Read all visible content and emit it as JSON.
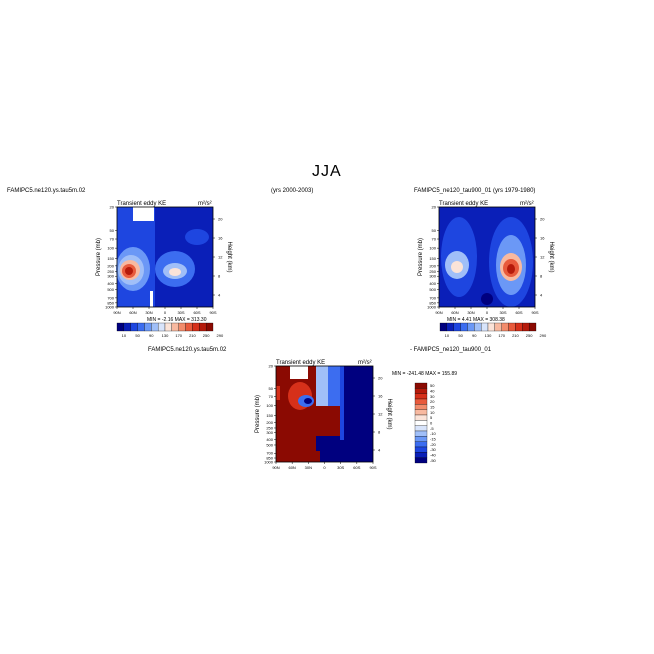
{
  "page_title": "JJA",
  "left_header": "FAMIPC5.ne120.ys.tau5m.02",
  "center_header": "(yrs 2000-2003)",
  "right_header": "FAMIPC5_ne120_tau900_01 (yrs 1979-1980)",
  "diff_header_left": "FAMIPC5.ne120.ys.tau5m.02",
  "diff_header_right": "- FAMIPC5_ne120_tau900_01",
  "chart_data": [
    {
      "type": "heatmap",
      "panel": "top-left",
      "title": "Transient eddy KE",
      "units": "m²/s²",
      "ylabel": "Pressure (mb)",
      "ylabel_right": "Height (km)",
      "x_ticks": [
        "90N",
        "60N",
        "30N",
        "0",
        "30S",
        "60S",
        "90S"
      ],
      "y_ticks": [
        "20",
        "50",
        "70",
        "100",
        "150",
        "200",
        "250",
        "300",
        "400",
        "500",
        "700",
        "850",
        "1000"
      ],
      "y_right_ticks": [
        "20",
        "16",
        "12",
        "8",
        "4"
      ],
      "min_label": "MIN = -2.16",
      "max_label": "MAX = 313.30",
      "min": -2.16,
      "max": 313.3
    },
    {
      "type": "heatmap",
      "panel": "top-right",
      "title": "Transient eddy KE",
      "units": "m²/s²",
      "ylabel": "Pressure (mb)",
      "ylabel_right": "Height (km)",
      "x_ticks": [
        "90N",
        "60N",
        "30N",
        "0",
        "30S",
        "60S",
        "90S"
      ],
      "y_ticks": [
        "20",
        "50",
        "70",
        "100",
        "150",
        "200",
        "250",
        "300",
        "400",
        "500",
        "700",
        "850",
        "1000"
      ],
      "y_right_ticks": [
        "20",
        "16",
        "12",
        "8",
        "4"
      ],
      "min_label": "MIN = 4.41",
      "max_label": "MAX = 308.38",
      "min": 4.41,
      "max": 308.38
    },
    {
      "type": "heatmap",
      "panel": "difference",
      "title": "Transient eddy KE",
      "units": "m²/s²",
      "ylabel": "Pressure (mb)",
      "ylabel_right": "Height (km)",
      "x_ticks": [
        "90N",
        "60N",
        "30N",
        "0",
        "30S",
        "60S",
        "90S"
      ],
      "y_ticks": [
        "20",
        "50",
        "70",
        "100",
        "150",
        "200",
        "250",
        "300",
        "400",
        "500",
        "700",
        "850",
        "1000"
      ],
      "y_right_ticks": [
        "20",
        "16",
        "12",
        "8",
        "4"
      ],
      "min_label": "MIN = -241.48",
      "max_label": "MAX = 155.89",
      "min": -241.48,
      "max": 155.89
    }
  ],
  "colorbar_main": {
    "labels": [
      "10",
      "50",
      "90",
      "130",
      "170",
      "210",
      "250",
      "290"
    ],
    "colors": [
      "#00007f",
      "#0a1fb8",
      "#1e46e0",
      "#3c6df0",
      "#6b98f6",
      "#a0bff8",
      "#d8e4fb",
      "#fbe3d8",
      "#f8b9a0",
      "#f28c6c",
      "#e85a3c",
      "#d6301a",
      "#b51a0b",
      "#8b0a02"
    ]
  },
  "colorbar_diff": {
    "labels": [
      "50",
      "40",
      "30",
      "20",
      "15",
      "10",
      "5",
      "0",
      "-5",
      "-10",
      "-15",
      "-20",
      "-30",
      "-40",
      "-50"
    ],
    "colors": [
      "#8b0a02",
      "#b51a0b",
      "#d6301a",
      "#e85a3c",
      "#f28c6c",
      "#f8b9a0",
      "#fbe3d8",
      "#ffffff",
      "#d8e4fb",
      "#a0bff8",
      "#6b98f6",
      "#3c6df0",
      "#1e46e0",
      "#0a1fb8",
      "#00007f"
    ]
  }
}
